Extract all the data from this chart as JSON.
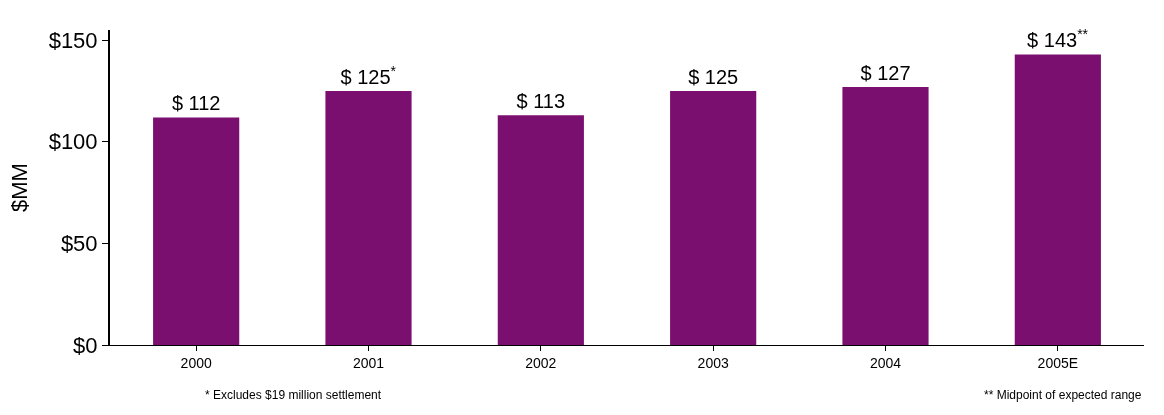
{
  "chart_data": {
    "type": "bar",
    "ylabel": "$MM",
    "categories": [
      "2000",
      "2001",
      "2002",
      "2003",
      "2004",
      "2005E"
    ],
    "values": [
      112,
      125,
      113,
      125,
      127,
      143
    ],
    "value_labels": [
      "$ 112",
      "$ 125$^{*}$",
      "$ 113",
      "$ 125",
      "$ 127",
      "$ 143$^{**}$"
    ],
    "color": "#7b0f6f",
    "ylim": [
      0,
      155
    ],
    "yticks": [
      {
        "value": 0,
        "label": "$0"
      },
      {
        "value": 50,
        "label": "$50"
      },
      {
        "value": 100,
        "label": "$100"
      },
      {
        "value": 150,
        "label": "$150"
      }
    ],
    "annotations": [
      "* Excludes $19 million settlement",
      "** Midpoint of expected range"
    ]
  }
}
